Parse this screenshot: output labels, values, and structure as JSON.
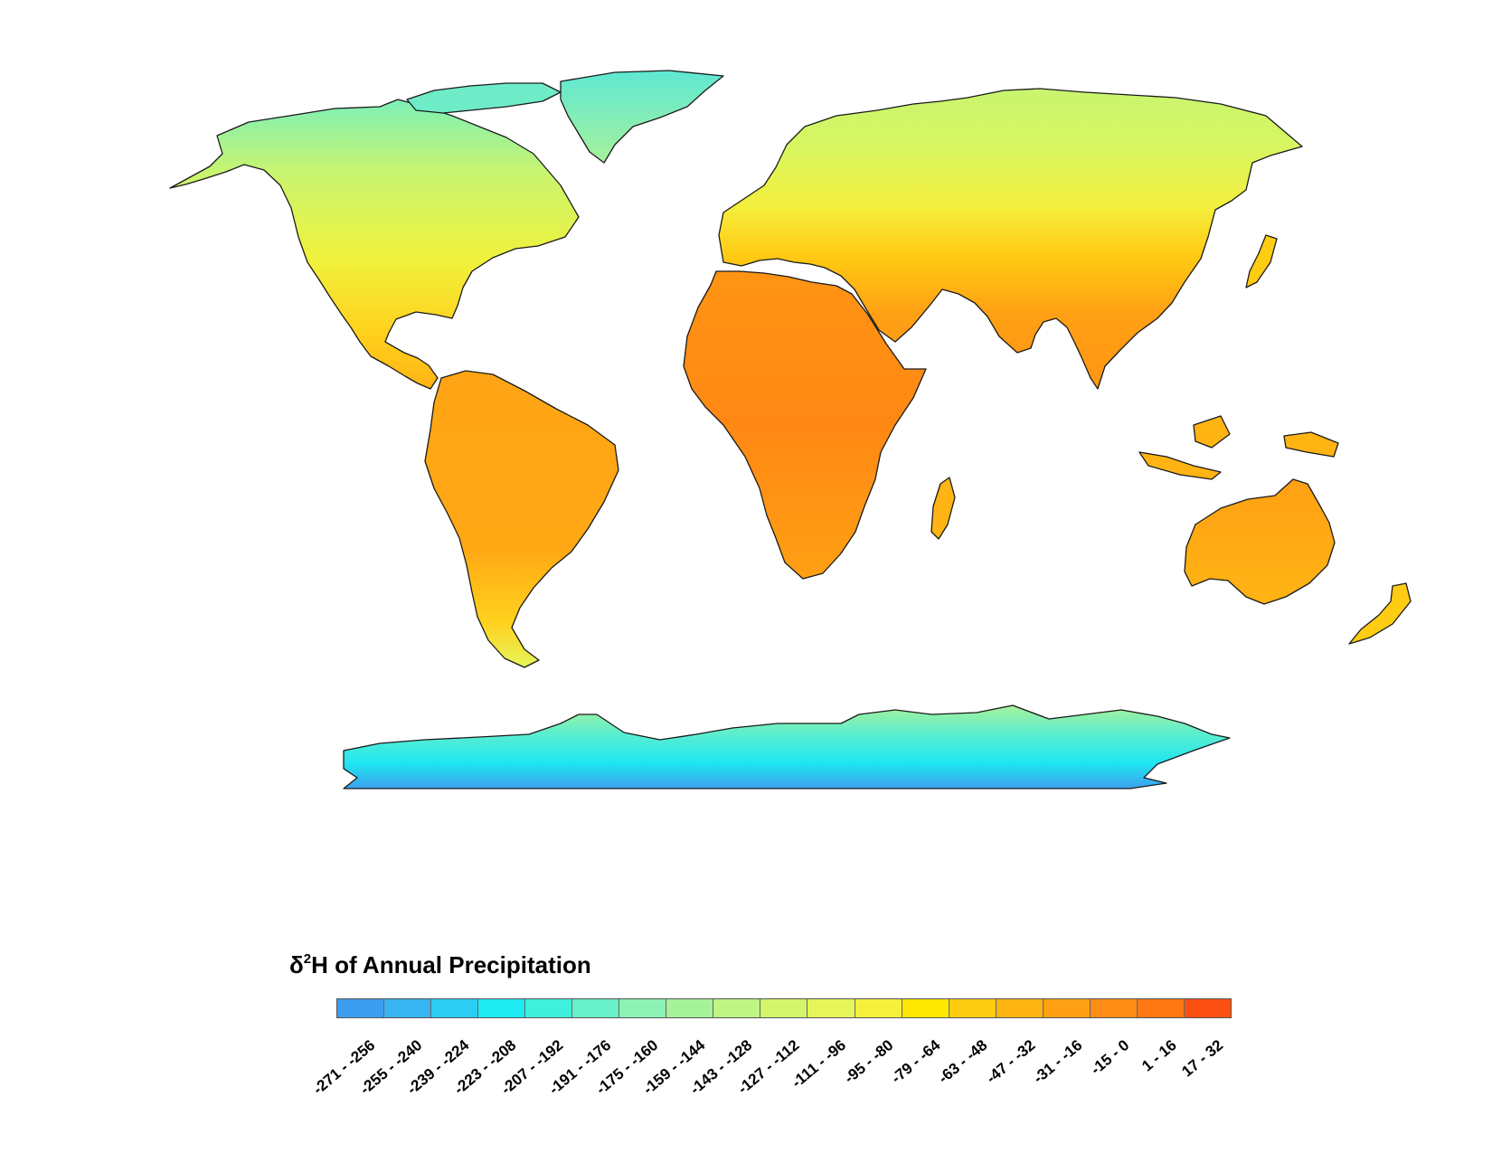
{
  "legend": {
    "symbol": "δ",
    "superscript": "2",
    "title_rest": "H of Annual Precipitation",
    "classes": [
      {
        "label": "-271 - -256",
        "color": "#3d9ef0"
      },
      {
        "label": "-255 - -240",
        "color": "#38b4f2"
      },
      {
        "label": "-239 - -224",
        "color": "#2ccdf2"
      },
      {
        "label": "-223 - -208",
        "color": "#1cebf2"
      },
      {
        "label": "-207 - -192",
        "color": "#3ff0dc"
      },
      {
        "label": "-191 - -176",
        "color": "#68f0c8"
      },
      {
        "label": "-175 - -160",
        "color": "#8cf2b4"
      },
      {
        "label": "-159 - -144",
        "color": "#a6f29a"
      },
      {
        "label": "-143 - -128",
        "color": "#bef584"
      },
      {
        "label": "-127 - -112",
        "color": "#d2f56c"
      },
      {
        "label": "-111 - -96",
        "color": "#e6f55a"
      },
      {
        "label": "-95 - -80",
        "color": "#f5f03c"
      },
      {
        "label": "-79 - -64",
        "color": "#ffe800"
      },
      {
        "label": "-63 - -48",
        "color": "#ffcc14"
      },
      {
        "label": "-47 - -32",
        "color": "#ffb414"
      },
      {
        "label": "-31 - -16",
        "color": "#ffa014"
      },
      {
        "label": "-15 - 0",
        "color": "#ff8c14"
      },
      {
        "label": "1 - 16",
        "color": "#ff7814"
      },
      {
        "label": "17 - 32",
        "color": "#ff5014"
      }
    ]
  },
  "map_colors": {
    "outline": "#1a1a1a",
    "background": "#ffffff"
  }
}
